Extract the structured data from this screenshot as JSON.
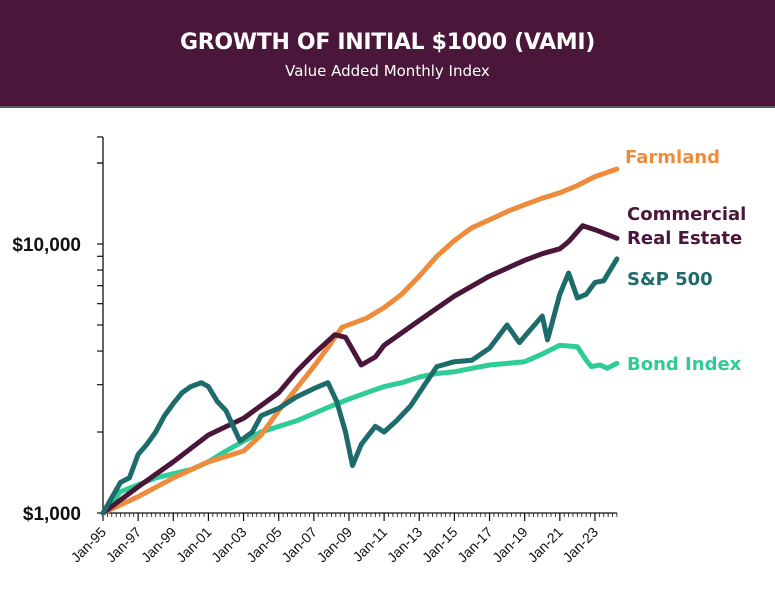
{
  "header": {
    "title": "GROWTH OF INITIAL $1000 (VAMI)",
    "subtitle": "Value Added Monthly Index"
  },
  "chart_data": {
    "type": "line",
    "title": "GROWTH OF INITIAL $1000 (VAMI)",
    "subtitle": "Value Added Monthly Index",
    "xlabel": "",
    "ylabel": "",
    "yscale": "log",
    "ylim": [
      1000,
      25000
    ],
    "xlim": [
      1995,
      2024.25
    ],
    "y_tick_labels": [
      {
        "value": 1000,
        "label": "$1,000"
      },
      {
        "value": 10000,
        "label": "$10,000"
      }
    ],
    "x_tick_labels": [
      "Jan-95",
      "Jan-97",
      "Jan-99",
      "Jan-01",
      "Jan-03",
      "Jan-05",
      "Jan-07",
      "Jan-09",
      "Jan-11",
      "Jan-13",
      "Jan-15",
      "Jan-17",
      "Jan-19",
      "Jan-21",
      "Jan-23"
    ],
    "x_tick_years": [
      1995,
      1997,
      1999,
      2001,
      2003,
      2005,
      2007,
      2009,
      2011,
      2013,
      2015,
      2017,
      2019,
      2021,
      2023
    ],
    "legend": "inline-right",
    "grid": false,
    "series": [
      {
        "name": "Farmland",
        "label_lines": [
          "Farmland"
        ],
        "color": "#ee8c3e",
        "x": [
          1995,
          1997,
          1999,
          2001,
          2003,
          2004,
          2005,
          2006,
          2007,
          2008,
          2008.6,
          2010,
          2011,
          2012,
          2013,
          2014,
          2015,
          2016,
          2017,
          2018,
          2019,
          2020,
          2021,
          2022,
          2023,
          2024.25
        ],
        "values": [
          1000,
          1150,
          1350,
          1550,
          1700,
          1950,
          2400,
          2900,
          3500,
          4300,
          4900,
          5300,
          5800,
          6500,
          7600,
          9000,
          10300,
          11500,
          12300,
          13200,
          14000,
          14800,
          15500,
          16500,
          17800,
          19000
        ]
      },
      {
        "name": "Commercial Real Estate",
        "label_lines": [
          "Commercial",
          "Real Estate"
        ],
        "color": "#4a163a",
        "x": [
          1995,
          1997,
          1999,
          2001,
          2003,
          2005,
          2006,
          2007,
          2008.2,
          2008.8,
          2009.7,
          2010.5,
          2011,
          2013,
          2015,
          2017,
          2019,
          2020,
          2021,
          2021.5,
          2022.3,
          2023,
          2024.25
        ],
        "values": [
          1000,
          1250,
          1550,
          1950,
          2250,
          2800,
          3350,
          3900,
          4600,
          4500,
          3550,
          3800,
          4200,
          5200,
          6400,
          7600,
          8700,
          9200,
          9600,
          10200,
          11700,
          11300,
          10500
        ]
      },
      {
        "name": "S&P 500",
        "label_lines": [
          "S&P 500"
        ],
        "color": "#1d6b6b",
        "x": [
          1995,
          1996,
          1996.5,
          1997,
          1997.5,
          1998,
          1998.5,
          1999,
          1999.5,
          2000,
          2000.6,
          2001,
          2001.5,
          2002,
          2002.8,
          2003.5,
          2004,
          2005,
          2006,
          2007,
          2007.8,
          2008.3,
          2008.8,
          2009.2,
          2009.7,
          2010.5,
          2011,
          2011.7,
          2012.5,
          2013,
          2014,
          2015,
          2016,
          2017,
          2018,
          2018.7,
          2019.2,
          2020,
          2020.3,
          2021,
          2021.5,
          2022,
          2022.5,
          2023,
          2023.5,
          2024.25
        ],
        "values": [
          1000,
          1300,
          1350,
          1650,
          1800,
          2000,
          2300,
          2550,
          2800,
          2950,
          3050,
          2950,
          2600,
          2400,
          1850,
          2000,
          2300,
          2450,
          2700,
          2900,
          3050,
          2600,
          2000,
          1500,
          1800,
          2100,
          2000,
          2200,
          2500,
          2800,
          3500,
          3650,
          3700,
          4100,
          5000,
          4300,
          4700,
          5400,
          4400,
          6500,
          7800,
          6300,
          6500,
          7200,
          7300,
          8800
        ]
      },
      {
        "name": "Bond Index",
        "label_lines": [
          "Bond Index"
        ],
        "color": "#2ecc96",
        "x": [
          1995,
          1996,
          1998,
          2000,
          2001,
          2002,
          2003,
          2004,
          2006,
          2008,
          2009,
          2010,
          2011,
          2012,
          2013,
          2014,
          2015,
          2016,
          2017,
          2018,
          2019,
          2020,
          2021,
          2022,
          2022.5,
          2022.8,
          2023.3,
          2023.7,
          2024.25
        ],
        "values": [
          1000,
          1200,
          1350,
          1450,
          1550,
          1700,
          1850,
          2000,
          2200,
          2500,
          2650,
          2800,
          2950,
          3050,
          3200,
          3300,
          3350,
          3450,
          3550,
          3600,
          3650,
          3900,
          4200,
          4150,
          3700,
          3500,
          3550,
          3450,
          3600
        ]
      }
    ]
  }
}
